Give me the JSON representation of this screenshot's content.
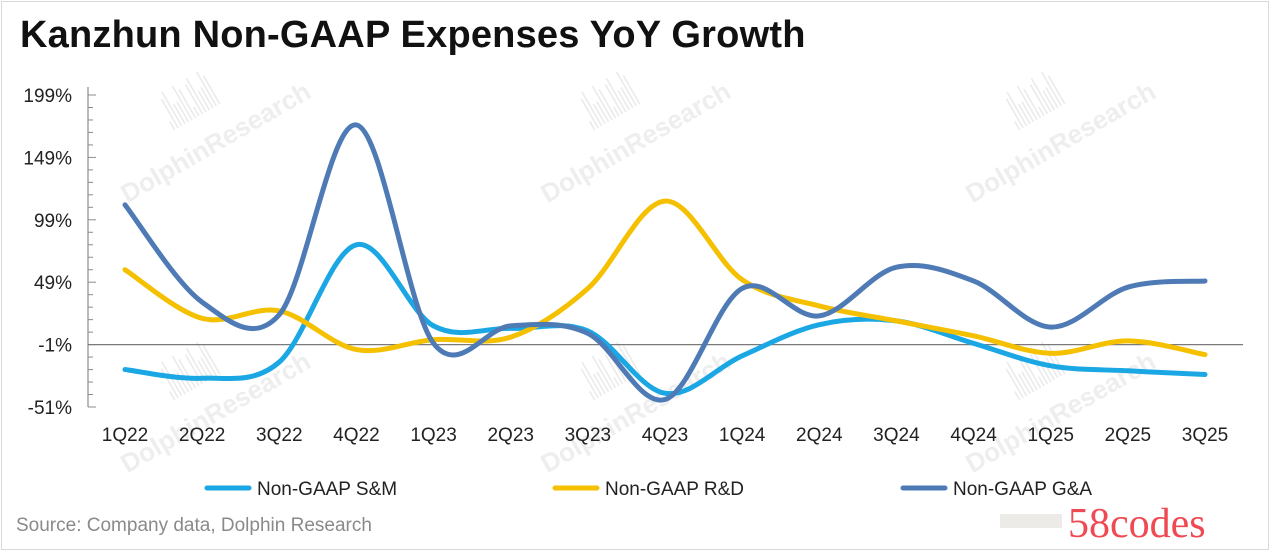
{
  "title": "Kanzhun Non-GAAP Expenses YoY Growth",
  "source": "Source: Company data, Dolphin Research",
  "brand_mark": "58codes",
  "watermark": "DolphinResearch",
  "chart_data": {
    "type": "line",
    "title": "Kanzhun Non-GAAP Expenses YoY Growth",
    "xlabel": "",
    "ylabel": "",
    "categories": [
      "1Q22",
      "2Q22",
      "3Q22",
      "4Q22",
      "1Q23",
      "2Q23",
      "3Q23",
      "4Q23",
      "1Q24",
      "2Q24",
      "3Q24",
      "4Q24",
      "1Q25",
      "2Q25",
      "3Q25"
    ],
    "y_ticks": [
      "199%",
      "149%",
      "99%",
      "49%",
      "-1%",
      "-51%"
    ],
    "y_tick_values": [
      199,
      149,
      99,
      49,
      -1,
      -51
    ],
    "ylim": [
      -51,
      199
    ],
    "zero_line": -1,
    "grid": false,
    "legend_position": "bottom",
    "series": [
      {
        "name": "Non-GAAP S&M",
        "color": "#1aa7e4",
        "values": [
          -21,
          -28,
          -15,
          79,
          14,
          12,
          10,
          -40,
          -10,
          15,
          18,
          0,
          -18,
          -22,
          -25
        ]
      },
      {
        "name": "Non-GAAP R&D",
        "color": "#f5c000",
        "values": [
          59,
          20,
          26,
          -5,
          3,
          5,
          44,
          114,
          51,
          30,
          18,
          6,
          -8,
          2,
          -9
        ]
      },
      {
        "name": "Non-GAAP G&A",
        "color": "#4e7bb5",
        "values": [
          111,
          33,
          23,
          175,
          0,
          14,
          8,
          -45,
          44,
          22,
          61,
          50,
          13,
          45,
          50
        ]
      }
    ]
  }
}
